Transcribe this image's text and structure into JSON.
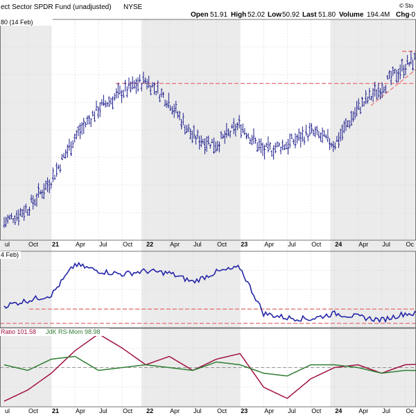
{
  "header": {
    "title": "ect Sector SPDR Fund (unadjusted)",
    "exchange": "NYSE",
    "source_mark": "© Sto",
    "open_label": "Open",
    "open": "51.91",
    "high_label": "High",
    "high": "52.02",
    "low_label": "Low",
    "low": "50.92",
    "last_label": "Last",
    "last": "51.80",
    "volume_label": "Volume",
    "volume": "194.4M",
    "chg_label": "Chg",
    "chg": "-0"
  },
  "panels": {
    "price_legend": "80 (14 Feb)",
    "ratio_legend": "4 Feb)",
    "rrg_legend_ratio": "Ratio 101.58",
    "rrg_legend_mom": "JdK RS-Mom 98.98"
  },
  "colors": {
    "price": "#1c1c8c",
    "ratio_line": "#2323a8",
    "rs_ratio": "#a01040",
    "rs_mom": "#2e7d32",
    "level_line": "#e87a7a",
    "shade": "#ebebeb",
    "grid": "#d4d4d4"
  },
  "x_axis": {
    "tick_labels": [
      "ul",
      "Oct",
      "21",
      "Apr",
      "Jul",
      "Oct",
      "22",
      "Apr",
      "Jul",
      "Oct",
      "23",
      "Apr",
      "Jul",
      "Oct",
      "24",
      "Apr",
      "Jul",
      "Oc"
    ],
    "year_labels": [
      "21",
      "22",
      "23",
      "24"
    ]
  },
  "chart_data": [
    {
      "type": "bar",
      "title": "ect Sector SPDR Fund (unadjusted) NYSE",
      "legend": "80 (14 Feb)",
      "x": [
        "2020-07",
        "2020-10",
        "2021-01",
        "2021-04",
        "2021-07",
        "2021-10",
        "2022-01",
        "2022-04",
        "2022-07",
        "2022-10",
        "2023-01",
        "2023-04",
        "2023-07",
        "2023-10",
        "2024-01",
        "2024-04",
        "2024-07",
        "2024-10",
        "2025-01",
        "2025-02"
      ],
      "y": [
        29.5,
        31.5,
        35.5,
        41.5,
        45.5,
        47.8,
        49.5,
        46.5,
        41.5,
        40.5,
        43.2,
        39.5,
        40.5,
        42.2,
        40.5,
        45.5,
        48.5,
        51.5,
        53.5,
        51.8
      ],
      "ylim": [
        27,
        58
      ],
      "resistance_level": 49.0,
      "grid": true
    },
    {
      "type": "line",
      "legend": "4 Feb)",
      "x": [
        "2020-07",
        "2020-10",
        "2021-01",
        "2021-04",
        "2021-07",
        "2021-10",
        "2022-01",
        "2022-04",
        "2022-07",
        "2022-10",
        "2023-01",
        "2023-04",
        "2023-07",
        "2023-10",
        "2024-01",
        "2024-04",
        "2024-07",
        "2024-10",
        "2025-02"
      ],
      "y": [
        0.5,
        0.55,
        0.6,
        0.88,
        0.82,
        0.79,
        0.82,
        0.8,
        0.72,
        0.81,
        0.85,
        0.43,
        0.39,
        0.38,
        0.43,
        0.4,
        0.37,
        0.43,
        0.42
      ],
      "ylim": [
        0.3,
        1.0
      ],
      "upper_level": 0.47,
      "lower_level": 0.34,
      "grid": true
    },
    {
      "type": "line",
      "series": [
        {
          "name": "Ratio 101.58",
          "values": [
            88,
            92,
            98,
            106,
            112,
            107,
            101,
            104,
            99,
            103,
            105,
            93,
            89,
            96,
            100,
            101,
            98,
            101,
            101.58
          ]
        },
        {
          "name": "JdK RS-Mom 98.98",
          "values": [
            101,
            99,
            103,
            104,
            99,
            100,
            101,
            100,
            99,
            102,
            101,
            98,
            97,
            101,
            101,
            100,
            98,
            99,
            98.98
          ]
        }
      ],
      "x": [
        "2020-07",
        "2020-10",
        "2021-01",
        "2021-04",
        "2021-07",
        "2021-10",
        "2022-01",
        "2022-04",
        "2022-07",
        "2022-10",
        "2023-01",
        "2023-04",
        "2023-07",
        "2023-10",
        "2024-01",
        "2024-04",
        "2024-07",
        "2024-10",
        "2025-02"
      ],
      "ylim": [
        86,
        114
      ],
      "reference": 100,
      "grid": true
    }
  ]
}
